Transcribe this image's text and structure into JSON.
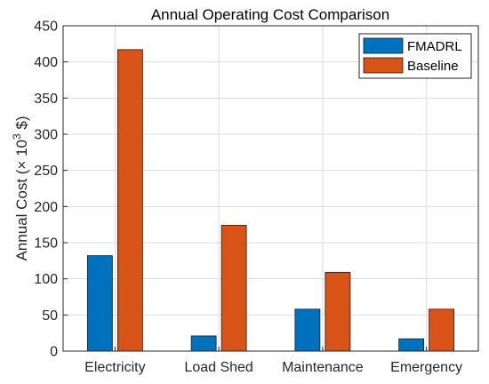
{
  "chart_data": {
    "type": "bar",
    "title": "Annual Operating Cost Comparison",
    "xlabel": "",
    "ylabel": {
      "prefix": "Annual Cost (",
      "times": "×",
      "base": " 10",
      "exponent": "3",
      "suffix": " $)"
    },
    "categories": [
      "Electricity",
      "Load Shed",
      "Maintenance",
      "Emergency"
    ],
    "series": [
      {
        "name": "FMADRL",
        "values": [
          132,
          21,
          58,
          17
        ],
        "color": "#0072BD"
      },
      {
        "name": "Baseline",
        "values": [
          417,
          174,
          109,
          58
        ],
        "color": "#D95319"
      }
    ],
    "ylim": [
      0,
      450
    ],
    "yticks": [
      0,
      50,
      100,
      150,
      200,
      250,
      300,
      350,
      400,
      450
    ],
    "grid": true,
    "legend_position": "top-right"
  }
}
